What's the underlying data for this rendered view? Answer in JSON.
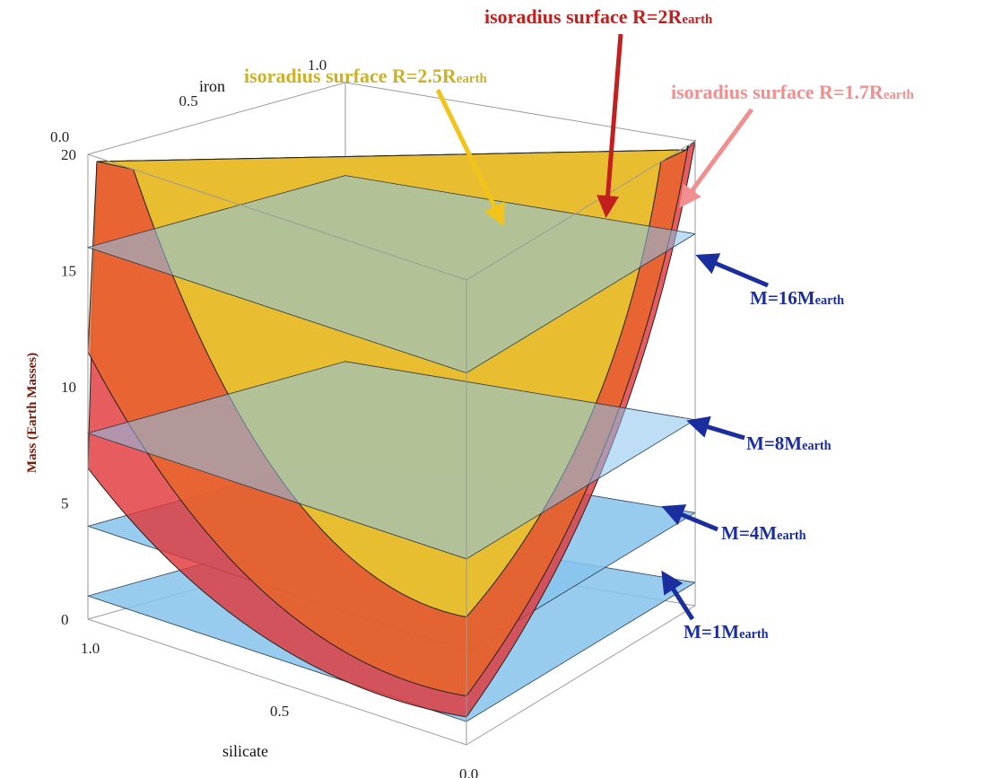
{
  "colors": {
    "r25": "#e8d230",
    "r2": "#e8662a",
    "r17": "#e0383c",
    "mass_plane": "#86c3ec",
    "label_r25": "#c9b22a",
    "label_r2": "#c21f1f",
    "label_r17": "#ef8f8f",
    "label_mass": "#1a2ea0"
  },
  "chart_data": {
    "type": "surface3d",
    "axes": {
      "x": {
        "label": "silicate",
        "ticks": [
          "1.0",
          "0.5",
          "0.0"
        ],
        "range": [
          0,
          1
        ]
      },
      "y": {
        "label": "iron",
        "ticks": [
          "0.0",
          "0.5",
          "1.0"
        ],
        "range": [
          0,
          1
        ]
      },
      "z": {
        "label": "Mass (Earth Masses)",
        "ticks": [
          "0",
          "5",
          "10",
          "15",
          "20"
        ],
        "range": [
          0,
          20
        ]
      }
    },
    "surfaces": [
      {
        "name_prefix": "isoradius surface R=2.5R",
        "name_sub": "earth",
        "color_key": "r25",
        "min_mass": 5.5,
        "back_mass": 20,
        "side_edges": [
          {
            "mass": 20,
            "frac": 0.12
          },
          {
            "mass": 20,
            "frac": 0.85
          }
        ]
      },
      {
        "name_prefix": "isoradius surface R=2R",
        "name_sub": "earth",
        "color_key": "r2",
        "min_mass": 2.1,
        "back_mass": 20,
        "side_edges": [
          {
            "mass": 11.5,
            "frac": 0.0
          },
          {
            "mass": 20,
            "frac": 0.97
          }
        ]
      },
      {
        "name_prefix": "isoradius surface R=1.7R",
        "name_sub": "earth",
        "color_key": "r17",
        "min_mass": 1.2,
        "back_mass": 20,
        "side_edges": [
          {
            "mass": 6.5,
            "frac": 0.0
          },
          {
            "mass": 20,
            "frac": 1.0
          }
        ]
      }
    ],
    "mass_planes": [
      {
        "mass": 1,
        "label_prefix": "M=1M",
        "label_sub": "earth"
      },
      {
        "mass": 4,
        "label_prefix": "M=4M",
        "label_sub": "earth"
      },
      {
        "mass": 8,
        "label_prefix": "M=8M",
        "label_sub": "earth"
      },
      {
        "mass": 16,
        "label_prefix": "M=16M",
        "label_sub": "earth"
      }
    ]
  }
}
